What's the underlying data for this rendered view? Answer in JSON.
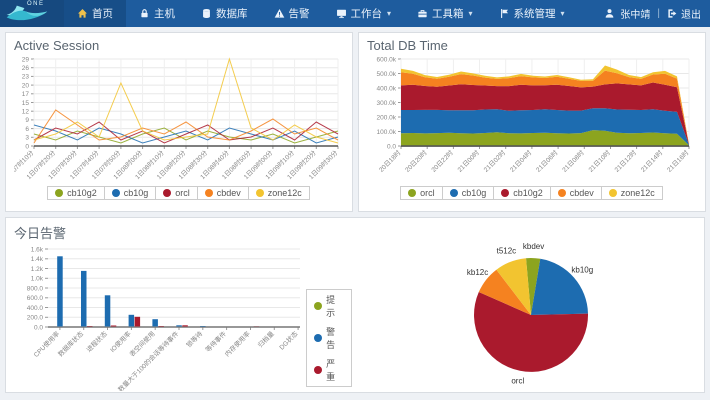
{
  "navbar": {
    "logo_text": "ONE",
    "items": [
      {
        "id": "home",
        "label": "首页",
        "icon": "home-icon",
        "icon_color": "#f0c14b",
        "active": true,
        "dropdown": false
      },
      {
        "id": "hosts",
        "label": "主机",
        "icon": "host-icon",
        "active": false,
        "dropdown": false
      },
      {
        "id": "databases",
        "label": "数据库",
        "icon": "database-icon",
        "active": false,
        "dropdown": false
      },
      {
        "id": "alerts",
        "label": "告警",
        "icon": "alert-icon",
        "active": false,
        "dropdown": false
      },
      {
        "id": "workbench",
        "label": "工作台",
        "icon": "workbench-icon",
        "active": false,
        "dropdown": true
      },
      {
        "id": "toolbox",
        "label": "工具箱",
        "icon": "toolbox-icon",
        "active": false,
        "dropdown": true
      },
      {
        "id": "system-admin",
        "label": "系统管理",
        "icon": "system-icon",
        "active": false,
        "dropdown": true
      }
    ],
    "user": {
      "name": "张中靖",
      "divider": "|",
      "logout_label": "退出"
    }
  },
  "panels": {
    "active_session": {
      "title": "Active Session"
    },
    "total_db_time": {
      "title": "Total DB Time"
    },
    "today_alarm": {
      "title": "今日告警"
    }
  },
  "colors": {
    "navbar_bg": "#1e5c9e",
    "page_bg": "#eef1f5",
    "green": "#8ca41f",
    "blue": "#1d6cb0",
    "red": "#aa1a2d",
    "orange": "#f58220",
    "yellow": "#f2c430"
  },
  "chart_data": [
    {
      "id": "active_session",
      "type": "line",
      "title": "Active Session",
      "ylim": [
        0,
        29
      ],
      "yticks": [
        "0",
        "3",
        "6",
        "9",
        "12",
        "15",
        "17",
        "20",
        "23",
        "26",
        "29"
      ],
      "x": [
        "1日07时10分",
        "1日07时20分",
        "1日07时30分",
        "1日07时40分",
        "1日07时50分",
        "1日08时00分",
        "1日08时10分",
        "1日08时20分",
        "1日08时30分",
        "1日08时40分",
        "1日08时50分",
        "1日09时00分",
        "1日09时10分",
        "1日09时20分",
        "1日09时30分"
      ],
      "legend_position": "bottom",
      "series": [
        {
          "name": "cb10g2",
          "color": "#8ca41f",
          "values": [
            4,
            2,
            5,
            3,
            1,
            4,
            6,
            2,
            5,
            3,
            2,
            4,
            1,
            3,
            5
          ]
        },
        {
          "name": "cb10g",
          "color": "#1d6cb0",
          "values": [
            7,
            5,
            2,
            6,
            4,
            1,
            3,
            5,
            2,
            6,
            4,
            2,
            5,
            1,
            3
          ]
        },
        {
          "name": "orcl",
          "color": "#aa1a2d",
          "values": [
            2,
            6,
            4,
            8,
            2,
            5,
            1,
            4,
            7,
            2,
            3,
            6,
            2,
            8,
            4
          ]
        },
        {
          "name": "cbdev",
          "color": "#f58220",
          "values": [
            1,
            12,
            7,
            2,
            3,
            6,
            4,
            8,
            3,
            2,
            5,
            9,
            4,
            6,
            2
          ]
        },
        {
          "name": "zone12c",
          "color": "#f2c430",
          "values": [
            2,
            4,
            8,
            3,
            21,
            5,
            2,
            3,
            4,
            29,
            6,
            2,
            7,
            3,
            1
          ]
        }
      ]
    },
    {
      "id": "total_db_time",
      "type": "area",
      "stacked": true,
      "title": "Total DB Time",
      "ylim": [
        0,
        600000
      ],
      "yticks": [
        "0.0",
        "100.0k",
        "200.0k",
        "300.0k",
        "400.0k",
        "500.0k",
        "600.0k"
      ],
      "x": [
        "20日18时",
        "20日20时",
        "20日22时",
        "21日00时",
        "21日02时",
        "21日04时",
        "21日06时",
        "21日08时",
        "21日10时",
        "21日12时",
        "21日14时",
        "21日16时"
      ],
      "legend_position": "bottom",
      "series": [
        {
          "name": "orcl",
          "color": "#8ca41f",
          "values": [
            88000,
            90000,
            87000,
            89000,
            92000,
            88000,
            86000,
            90000,
            95000,
            88000,
            87000,
            90000,
            92000,
            88000,
            86000,
            89000,
            110000,
            105000,
            92000,
            88000,
            90000,
            93000,
            88000,
            85000,
            5000
          ]
        },
        {
          "name": "cb10g",
          "color": "#1d6cb0",
          "values": [
            160000,
            158000,
            162000,
            160000,
            155000,
            158000,
            160000,
            162000,
            158000,
            155000,
            160000,
            158000,
            162000,
            160000,
            158000,
            155000,
            150000,
            155000,
            160000,
            162000,
            158000,
            160000,
            155000,
            150000,
            3000
          ]
        },
        {
          "name": "cb10g2",
          "color": "#aa1a2d",
          "values": [
            170000,
            175000,
            165000,
            160000,
            170000,
            180000,
            175000,
            165000,
            160000,
            170000,
            175000,
            170000,
            165000,
            175000,
            170000,
            160000,
            150000,
            165000,
            180000,
            175000,
            170000,
            185000,
            180000,
            170000,
            2000
          ]
        },
        {
          "name": "cbdev",
          "color": "#f58220",
          "values": [
            90000,
            75000,
            60000,
            55000,
            60000,
            70000,
            65000,
            55000,
            50000,
            55000,
            60000,
            55000,
            50000,
            55000,
            50000,
            45000,
            40000,
            95000,
            70000,
            50000,
            45000,
            55000,
            75000,
            60000,
            2000
          ]
        },
        {
          "name": "zone12c",
          "color": "#f2c430",
          "values": [
            25000,
            20000,
            15000,
            12000,
            15000,
            18000,
            15000,
            12000,
            10000,
            12000,
            15000,
            12000,
            10000,
            12000,
            10000,
            8000,
            10000,
            35000,
            25000,
            15000,
            12000,
            15000,
            20000,
            15000,
            1000
          ]
        }
      ]
    },
    {
      "id": "today_alarm",
      "type": "bar",
      "title": "今日告警",
      "ylim": [
        0,
        1600
      ],
      "yticks": [
        "0.0",
        "200.0",
        "400.0",
        "600.0",
        "800.0",
        "1.0k",
        "1.2k",
        "1.4k",
        "1.6k"
      ],
      "categories": [
        "CPU使用率",
        "数据库状态",
        "进程状态",
        "IO使用率",
        "表空间使用",
        "数量大于100的会话等待事件",
        "锁等待",
        "等待事件",
        "内存使用率",
        "归档量",
        "DG状态"
      ],
      "legend_position": "right",
      "series": [
        {
          "name": "提示",
          "color": "#8ca41f",
          "values": [
            0,
            0,
            0,
            0,
            0,
            0,
            0,
            0,
            0,
            0,
            0
          ]
        },
        {
          "name": "警告",
          "color": "#1d6cb0",
          "values": [
            1450,
            1150,
            650,
            250,
            160,
            35,
            20,
            0,
            0,
            0,
            0
          ]
        },
        {
          "name": "严重",
          "color": "#aa1a2d",
          "values": [
            0,
            20,
            30,
            210,
            20,
            35,
            0,
            0,
            15,
            0,
            10
          ]
        }
      ]
    },
    {
      "id": "alarm_pie",
      "type": "pie",
      "start_angle_deg": -95,
      "slices": [
        {
          "label": "kbdev",
          "color": "#8ca41f",
          "value": 4
        },
        {
          "label": "kb10g",
          "color": "#1d6cb0",
          "value": 22
        },
        {
          "label": "orcl",
          "color": "#aa1a2d",
          "value": 57
        },
        {
          "label": "kb12c",
          "color": "#f58220",
          "value": 8
        },
        {
          "label": "t512c",
          "color": "#f2c430",
          "value": 9
        }
      ]
    }
  ]
}
